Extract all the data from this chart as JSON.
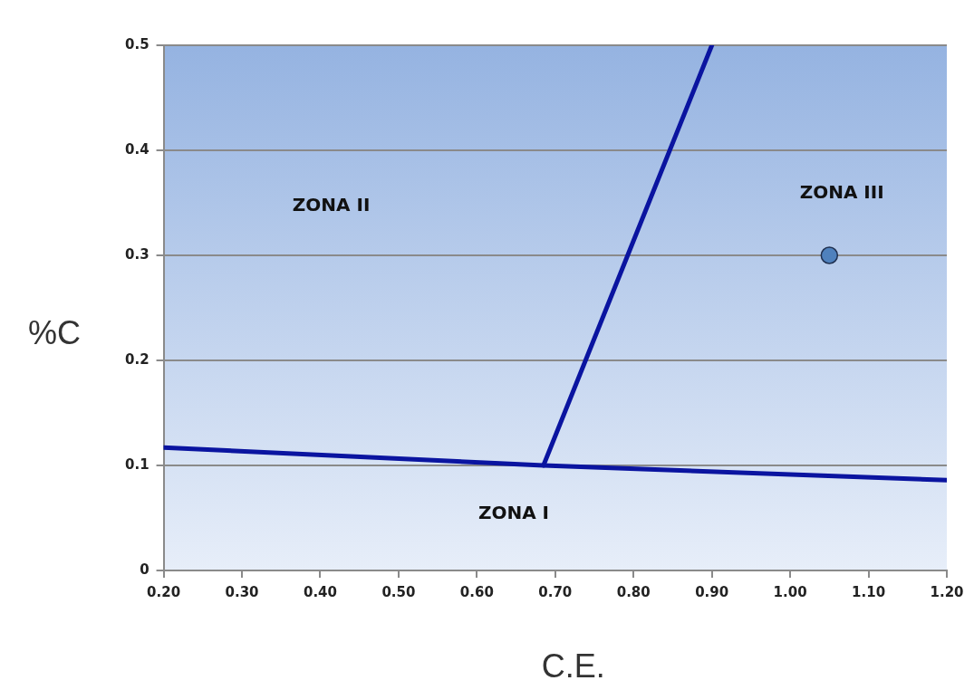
{
  "chart_data": {
    "type": "line",
    "xlabel": "C.E.",
    "ylabel": "%C",
    "xlim": [
      0.2,
      1.2
    ],
    "ylim": [
      0,
      0.5
    ],
    "xticks": [
      {
        "value": 0.2,
        "label": "0.20"
      },
      {
        "value": 0.3,
        "label": "0.30"
      },
      {
        "value": 0.4,
        "label": "0.40"
      },
      {
        "value": 0.5,
        "label": "0.50"
      },
      {
        "value": 0.6,
        "label": "0.60"
      },
      {
        "value": 0.7,
        "label": "0.70"
      },
      {
        "value": 0.8,
        "label": "0.80"
      },
      {
        "value": 0.9,
        "label": "0.90"
      },
      {
        "value": 1.0,
        "label": "1.00"
      },
      {
        "value": 1.1,
        "label": "1.10"
      },
      {
        "value": 1.2,
        "label": "1.20"
      }
    ],
    "yticks": [
      0,
      0.1,
      0.2,
      0.3,
      0.4,
      0.5
    ],
    "grid": "y",
    "legend": false,
    "series": [
      {
        "color": "#0a14a0",
        "x": [
          0.2,
          0.685,
          1.2
        ],
        "values": [
          0.117,
          0.1,
          0.086
        ],
        "marker": "none",
        "line_style": "solid"
      },
      {
        "color": "#0a14a0",
        "x": [
          0.685,
          0.9
        ],
        "values": [
          0.1,
          0.5
        ],
        "marker": "none",
        "line_style": "solid"
      },
      {
        "type": "scatter",
        "color": "#4f81bd",
        "x": [
          1.05
        ],
        "values": [
          0.3
        ],
        "marker": "circle"
      }
    ],
    "annotations": [
      "ZONA I",
      "ZONA II",
      "ZONA III"
    ]
  }
}
